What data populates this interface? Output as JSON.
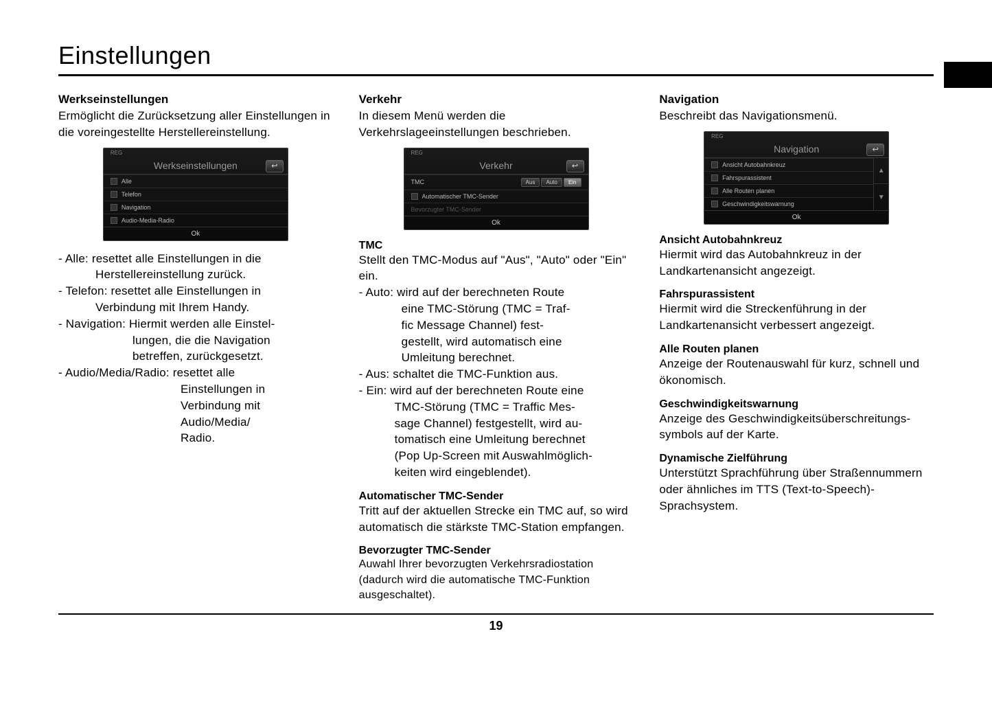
{
  "page": {
    "title": "Einstellungen",
    "number": "19"
  },
  "ui_common": {
    "reg_label": "REG",
    "back_glyph": "↩",
    "ok_label": "Ok",
    "arrow_up": "▲",
    "arrow_down": "▼"
  },
  "col1": {
    "head": "Werkseinstellungen",
    "intro": "Ermöglicht die Zurücksetzung aller Einstellungen in die voreingestellte Herstellereinstellung.",
    "mock": {
      "title": "Werkseinstellungen",
      "rows": [
        "Alle",
        "Telefon",
        "Navigation",
        "Audio-Media-Radio"
      ]
    },
    "items": [
      {
        "line": "- Alle: resettet alle Einstellungen in die",
        "conts": [
          "Herstellereinstellung zurück."
        ],
        "cont_indent": 54
      },
      {
        "line": "- Telefon: resettet alle Einstellungen in",
        "conts": [
          "Verbindung mit Ihrem Handy."
        ],
        "cont_indent": 54
      },
      {
        "line": "- Navigation: Hiermit werden alle Einstel-",
        "conts": [
          "lungen, die die Navigation",
          "betreffen, zurückgesetzt."
        ],
        "cont_indent": 108
      },
      {
        "line": "- Audio/Media/Radio: resettet alle",
        "conts": [
          "Einstellungen in",
          "Verbindung mit",
          "Audio/Media/",
          "Radio."
        ],
        "cont_indent": 178
      }
    ]
  },
  "col2": {
    "head": "Verkehr",
    "intro": "In diesem Menü werden die Verkehrslageeinstellungen beschrieben.",
    "mock": {
      "title": "Verkehr",
      "tmc_label": "TMC",
      "seg": [
        "Aus",
        "Auto",
        "Ein"
      ],
      "rows": [
        "Automatischer TMC-Sender",
        "Bevorzugter TMC-Sender"
      ]
    },
    "tmc": {
      "head": "TMC",
      "intro": "Stellt den TMC-Modus auf \"Aus\", \"Auto\" oder \"Ein\" ein.",
      "items": [
        {
          "line": "- Auto: wird auf der berechneten Route",
          "conts": [
            "eine TMC-Störung (TMC = Traf-",
            "fic  Message Channel) fest-",
            "gestellt, wird automatisch eine",
            "Umleitung berechnet."
          ],
          "cont_indent": 62
        },
        {
          "line": "- Aus: schaltet die TMC-Funktion aus.",
          "conts": [],
          "cont_indent": 62
        },
        {
          "line": "- Ein: wird auf der berechneten Route eine",
          "conts": [
            "TMC-Störung (TMC = Traffic  Mes-",
            "sage Channel) festgestellt, wird au-",
            "tomatisch eine Umleitung berechnet",
            "(Pop Up-Screen mit Auswahlmöglich-",
            "keiten wird eingeblendet)."
          ],
          "cont_indent": 52
        }
      ]
    },
    "auto_tmc": {
      "head": "Automatischer TMC-Sender",
      "text": "Tritt auf der aktuellen Strecke ein TMC auf, so wird automatisch die stärkste TMC-Station empfangen."
    },
    "bevor_tmc": {
      "head": "Bevorzugter TMC-Sender",
      "text": "Auwahl Ihrer bevorzugten Verkehrsradiostation (dadurch wird die automatische TMC-Funktion ausgeschaltet)."
    }
  },
  "col3": {
    "head": "Navigation",
    "intro": "Beschreibt das Navigationsmenü.",
    "mock": {
      "title": "Navigation",
      "rows": [
        "Ansicht Autobahnkreuz",
        "Fahrspurassistent",
        "Alle Routen planen",
        "Geschwindigkeitswarnung"
      ]
    },
    "sections": [
      {
        "head": "Ansicht Autobahnkreuz",
        "text": "Hiermit wird das Autobahnkreuz in der Landkartenansicht angezeigt."
      },
      {
        "head": "Fahrspurassistent",
        "text": "Hiermit wird die Streckenführung in der Landkartenansicht verbessert angezeigt."
      },
      {
        "head": "Alle Routen planen",
        "text": "Anzeige der Routenauswahl für kurz, schnell und ökonomisch."
      },
      {
        "head": "Geschwindigkeitswarnung",
        "text": "Anzeige des Geschwindigkeitsüberschreitungs-symbols auf der Karte."
      },
      {
        "head": "Dynamische Zielführung",
        "text": "Unterstützt Sprachführung über Straßennummern oder ähnliches im TTS (Text-to-Speech)-Sprachsystem."
      }
    ]
  }
}
